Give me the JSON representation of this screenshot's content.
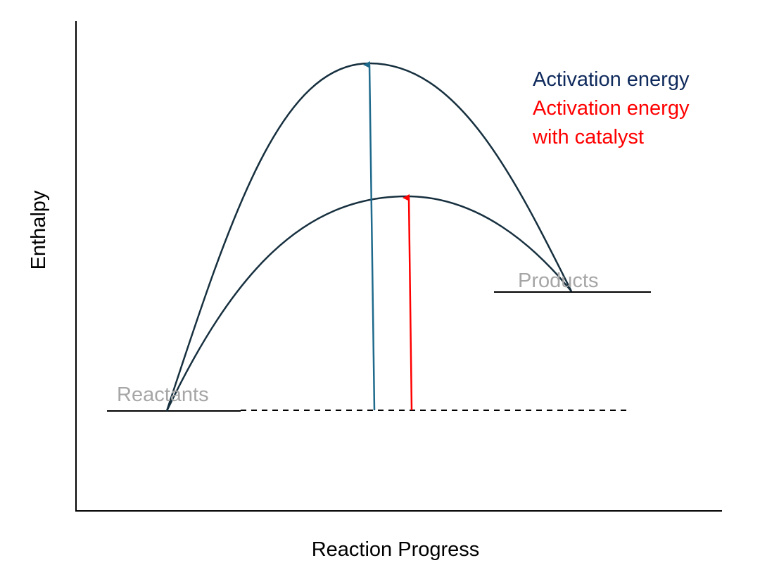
{
  "diagram": {
    "y_axis_label": "Enthalpy",
    "x_axis_label": "Reaction Progress",
    "reactants_label": "Reactants",
    "products_label": "Products",
    "legend": {
      "uncatalyzed": "Activation energy",
      "catalyzed_line1": "Activation energy",
      "catalyzed_line2": "with catalyst"
    },
    "colors": {
      "curve": "#17303f",
      "uncatalyzed_arrow": "#1f6a8c",
      "catalyzed_arrow": "#ff0000",
      "legend_uncatalyzed": "#0f2a5c",
      "legend_catalyzed": "#ff0000",
      "level_label": "#a6a6a6",
      "axis": "#000000"
    }
  }
}
